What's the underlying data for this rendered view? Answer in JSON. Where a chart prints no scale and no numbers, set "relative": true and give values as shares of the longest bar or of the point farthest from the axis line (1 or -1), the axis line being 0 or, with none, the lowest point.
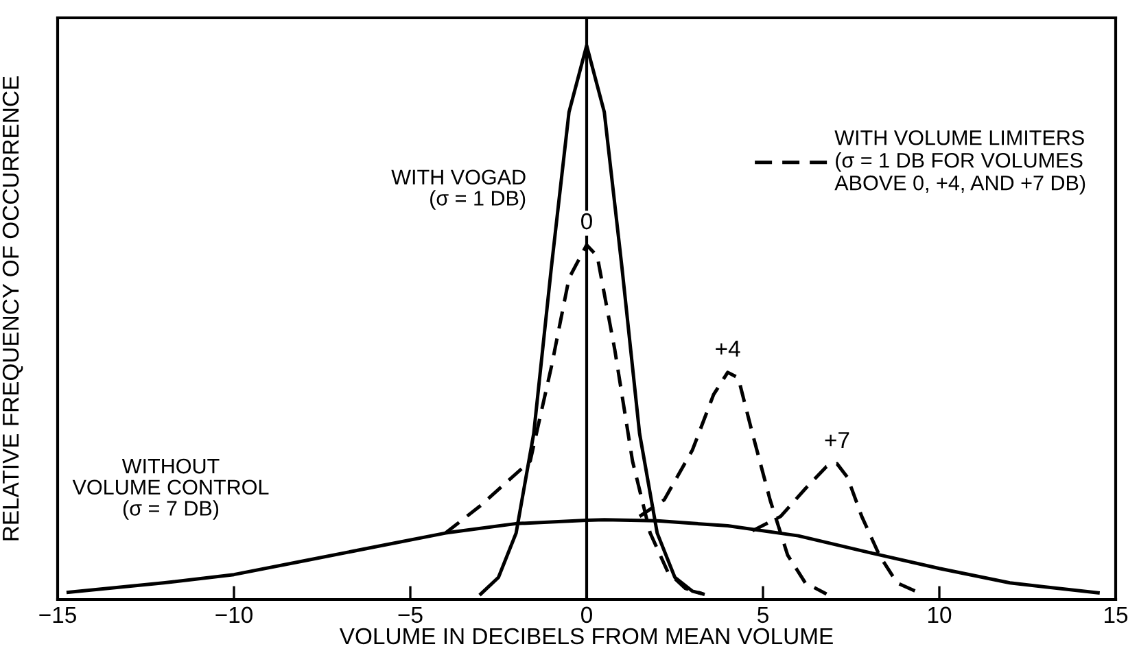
{
  "chart_data": {
    "type": "line",
    "relative": true,
    "xlabel": "VOLUME IN DECIBELS FROM MEAN VOLUME",
    "ylabel": "RELATIVE FREQUENCY OF OCCURRENCE",
    "xlim": [
      -15,
      15
    ],
    "xticks": [
      {
        "value": -15,
        "label": "−15"
      },
      {
        "value": -10,
        "label": "−10"
      },
      {
        "value": -5,
        "label": "−5"
      },
      0,
      5,
      10,
      15
    ],
    "legend": "top right",
    "grid": false,
    "marker": "none",
    "ref_lines": [
      {
        "axis": "x",
        "value": 0,
        "color": "#000000",
        "line_style": "solid"
      }
    ],
    "annotations": [
      "WITHOUT\nVOLUME CONTROL\n(σ = 7 DB)",
      "WITH VOGAD\n(σ = 1 DB)",
      {
        "text": "0",
        "x": 0,
        "y": 0.64
      },
      {
        "text": "+4",
        "x": 4,
        "y": 0.41
      },
      {
        "text": "+7",
        "x": 7.1,
        "y": 0.245
      }
    ],
    "series": [
      {
        "color": "#000000",
        "line_style": "solid",
        "x": [
          -14.7,
          -12,
          -10,
          -8,
          -6,
          -4,
          -2,
          0,
          0.5,
          2,
          4,
          6,
          8,
          10,
          12,
          14.5
        ],
        "values": [
          0.013,
          0.03,
          0.045,
          0.07,
          0.095,
          0.12,
          0.137,
          0.143,
          0.144,
          0.142,
          0.133,
          0.115,
          0.085,
          0.056,
          0.03,
          0.012
        ]
      },
      {
        "color": "#000000",
        "line_style": "solid",
        "x": [
          -3,
          -2.5,
          -2,
          -1.5,
          -1,
          -0.5,
          0,
          0.5,
          1,
          1.5,
          2,
          2.5,
          3,
          3.3
        ],
        "values": [
          0.01,
          0.04,
          0.12,
          0.3,
          0.6,
          0.88,
          1,
          0.88,
          0.6,
          0.3,
          0.12,
          0.04,
          0.015,
          0.01
        ]
      },
      {
        "name": "WITH VOLUME LIMITERS\n(σ = 1 DB FOR VOLUMES\nABOVE 0, +4, AND +7 DB)",
        "color": "#000000",
        "line_style": "dashed",
        "x": [
          -4,
          -3,
          -1.6,
          -1,
          -0.5,
          0,
          0.3,
          0.8,
          1.3,
          1.8,
          2.3,
          2.8,
          3.3
        ],
        "values": [
          0.12,
          0.17,
          0.25,
          0.42,
          0.58,
          0.64,
          0.62,
          0.45,
          0.25,
          0.12,
          0.05,
          0.02,
          0.01
        ]
      },
      {
        "color": "#000000",
        "line_style": "dashed",
        "x": [
          1.5,
          2.2,
          3,
          3.6,
          4,
          4.3,
          4.7,
          5.2,
          5.7,
          6.2,
          6.8
        ],
        "values": [
          0.15,
          0.18,
          0.27,
          0.37,
          0.41,
          0.4,
          0.3,
          0.18,
          0.08,
          0.03,
          0.01
        ]
      },
      {
        "color": "#000000",
        "line_style": "dashed",
        "x": [
          4.7,
          5.5,
          6.2,
          6.8,
          7.1,
          7.4,
          7.8,
          8.3,
          8.8,
          9.5
        ],
        "values": [
          0.124,
          0.15,
          0.2,
          0.24,
          0.245,
          0.22,
          0.15,
          0.08,
          0.03,
          0.01
        ]
      }
    ]
  }
}
